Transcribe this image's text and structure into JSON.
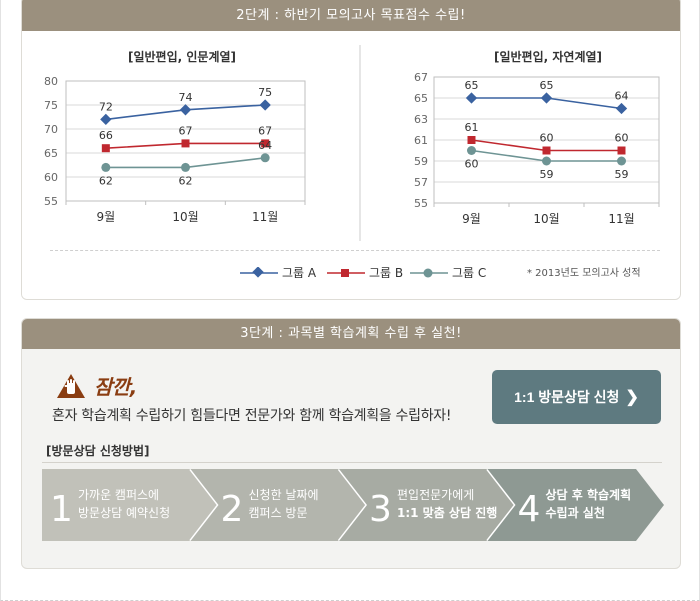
{
  "section2": {
    "title": "2단계 : 하반기 모의고사 목표점수 수립!"
  },
  "chart_data": [
    {
      "type": "line",
      "title": "[일반편입, 인문계열]",
      "categories": [
        "9월",
        "10월",
        "11월"
      ],
      "ylim": [
        55,
        80
      ],
      "yticks": [
        55,
        60,
        65,
        70,
        75,
        80
      ],
      "series": [
        {
          "name": "그룹 A",
          "color": "#3a62a0",
          "marker": "diamond",
          "values": [
            72,
            74,
            75
          ]
        },
        {
          "name": "그룹 B",
          "color": "#c0282f",
          "marker": "square",
          "values": [
            66,
            67,
            67
          ]
        },
        {
          "name": "그룹 C",
          "color": "#6e9494",
          "marker": "circle",
          "values": [
            62,
            62,
            64
          ]
        }
      ],
      "grid": true
    },
    {
      "type": "line",
      "title": "[일반편입, 자연계열]",
      "categories": [
        "9월",
        "10월",
        "11월"
      ],
      "ylim": [
        55,
        67
      ],
      "yticks": [
        55,
        57,
        59,
        61,
        63,
        65,
        67
      ],
      "series": [
        {
          "name": "그룹 A",
          "color": "#3a62a0",
          "marker": "diamond",
          "values": [
            65,
            65,
            64
          ]
        },
        {
          "name": "그룹 B",
          "color": "#c0282f",
          "marker": "square",
          "values": [
            61,
            60,
            60
          ]
        },
        {
          "name": "그룹 C",
          "color": "#6e9494",
          "marker": "circle",
          "values": [
            60,
            59,
            59
          ]
        }
      ],
      "grid": true
    }
  ],
  "legend": {
    "items": [
      {
        "label": "그룹 A",
        "color": "#3a62a0",
        "marker": "diamond"
      },
      {
        "label": "그룹 B",
        "color": "#c0282f",
        "marker": "square"
      },
      {
        "label": "그룹 C",
        "color": "#6e9494",
        "marker": "circle"
      }
    ],
    "note": "* 2013년도 모의고사 성적"
  },
  "section3": {
    "title": "3단계 : 과목별 학습계획 수립 후 실천!",
    "warning_title": "잠깐,",
    "warning_text": "혼자 학습계획 수립하기 힘들다면 전문가와 함께 학습계획을 수립하자!",
    "button_label": "1:1 방문상담 신청",
    "method_title": "[방문상담 신청방법]",
    "steps": [
      {
        "number": "1",
        "line1": "가까운 캠퍼스에",
        "line2": "방문상담 예약신청"
      },
      {
        "number": "2",
        "line1": "신청한 날짜에",
        "line2": "캠퍼스 방문"
      },
      {
        "number": "3",
        "line1": "편입전문가에게",
        "line2": "1:1 맞춤 상담 진행"
      },
      {
        "number": "4",
        "line1": "상담 후 학습계획",
        "line2": "수립과 실천"
      }
    ],
    "step_colors": [
      "#c1c1b9",
      "#b3b5ad",
      "#a7aba3",
      "#8e9993"
    ]
  }
}
